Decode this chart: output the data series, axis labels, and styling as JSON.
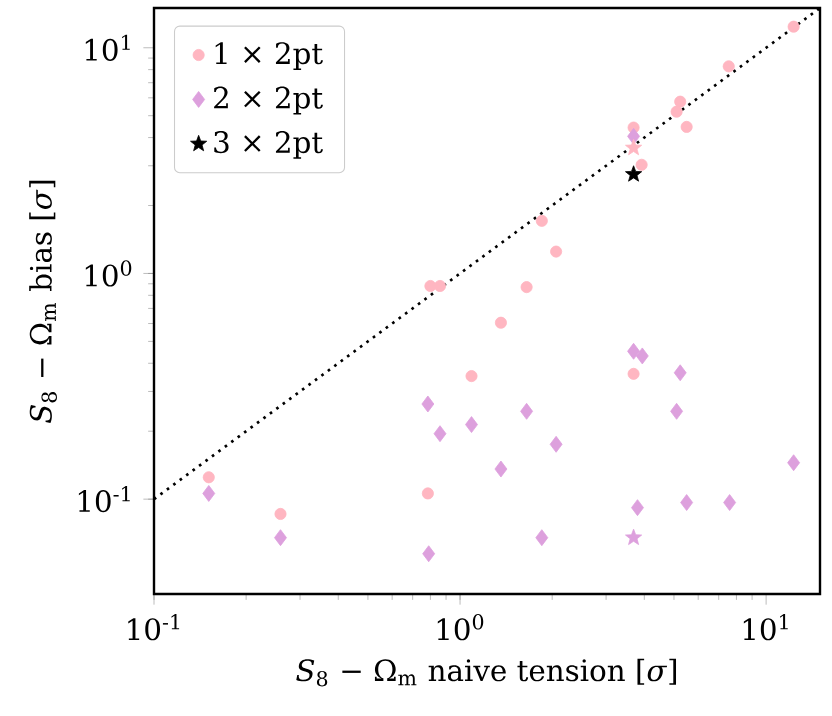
{
  "chart_data": {
    "type": "scatter",
    "xlabel": "*S*$_{8}$ − Ω$_{m}$ naive tension [*σ*]",
    "ylabel": "*S*$_{8}$ − Ω$_{m}$ bias [*σ*]",
    "log": "xy",
    "xlim": [
      0.1,
      15
    ],
    "ylim": [
      0.038,
      15
    ],
    "xticks": [
      {
        "value": 0.1,
        "label": "10$^{-1}$"
      },
      {
        "value": 1,
        "label": "10$^{0}$"
      },
      {
        "value": 10,
        "label": "10$^{1}$"
      }
    ],
    "yticks": [
      {
        "value": 0.1,
        "label": "10$^{-1}$"
      },
      {
        "value": 1,
        "label": "10$^{0}$"
      },
      {
        "value": 10,
        "label": "10$^{1}$"
      }
    ],
    "legend": "top left",
    "series": [
      {
        "type": "line",
        "color": "#000000",
        "line_style": "dotted",
        "marker": "none",
        "x": [
          0.1,
          15
        ],
        "values": [
          0.1,
          15
        ]
      },
      {
        "name": "1 × 2pt",
        "color": "#ffb6c1",
        "marker": "circle",
        "x": [
          12.3,
          7.55,
          5.24,
          5.1,
          5.5,
          3.69,
          3.92,
          1.85,
          2.06,
          0.8,
          0.86,
          1.65,
          1.36,
          3.69,
          1.09,
          0.151,
          0.259,
          0.785
        ],
        "values": [
          12.4,
          8.27,
          5.77,
          5.21,
          4.46,
          4.43,
          3.03,
          1.71,
          1.25,
          0.88,
          0.88,
          0.87,
          0.605,
          0.359,
          0.351,
          0.125,
          0.086,
          0.106
        ]
      },
      {
        "name": "2 × 2pt",
        "color": "#dda0dd",
        "marker": "diamond",
        "x": [
          3.69,
          3.69,
          3.94,
          5.24,
          5.1,
          0.785,
          1.65,
          1.09,
          0.86,
          2.06,
          1.36,
          12.3,
          0.151,
          3.8,
          5.5,
          7.6,
          0.259,
          1.85,
          0.79
        ],
        "values": [
          4.05,
          0.452,
          0.431,
          0.363,
          0.245,
          0.264,
          0.245,
          0.214,
          0.195,
          0.175,
          0.136,
          0.145,
          0.106,
          0.0917,
          0.0966,
          0.0966,
          0.0675,
          0.0675,
          0.0573
        ]
      },
      {
        "name": "3 × 2pt",
        "color": "#000000",
        "marker": "star",
        "x": [
          3.69
        ],
        "values": [
          2.75
        ]
      },
      {
        "color": "#ffb6c1",
        "marker": "star",
        "x": [
          3.69
        ],
        "values": [
          3.6
        ]
      },
      {
        "color": "#dda0dd",
        "marker": "star",
        "x": [
          3.69
        ],
        "values": [
          0.0675
        ]
      }
    ]
  }
}
